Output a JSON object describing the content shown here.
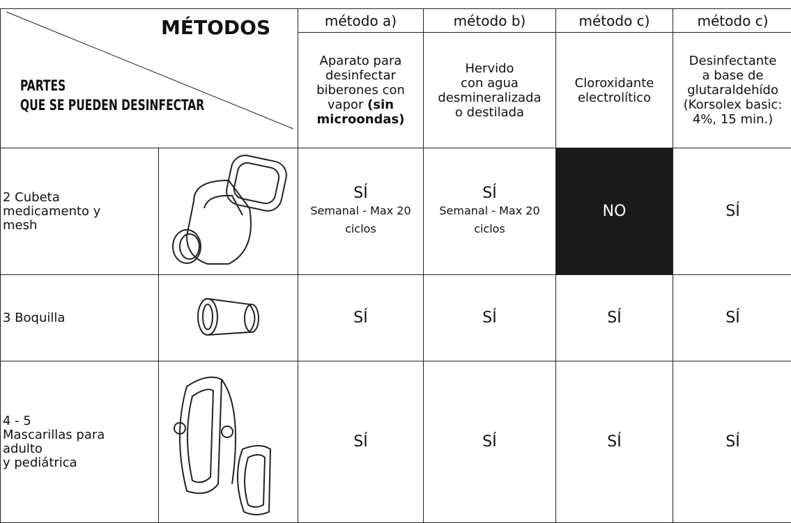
{
  "header": {
    "methods_label": "MÉTODOS",
    "parts_label": [
      "PARTES",
      "QUE SE PUEDEN DESINFECTAR"
    ]
  },
  "columns": [
    {
      "method": "método a)",
      "description": [
        "Aparato para desinfectar biberones con vapor "
      ],
      "description_bold": "(sin microondas)"
    },
    {
      "method": "método b)",
      "description": [
        "Hervido",
        "con agua",
        "desmineralizada",
        "o destilada"
      ]
    },
    {
      "method": "método c)",
      "description": [
        "Cloroxidante",
        "electrolítico"
      ]
    },
    {
      "method": "método c)",
      "description": [
        "Desinfectante",
        "a base de",
        "glutaraldehído",
        "(Korsolex basic:",
        "4%, 15 min.)"
      ]
    }
  ],
  "rows": [
    {
      "part": [
        "2 Cubeta",
        "medicamento y",
        "mesh"
      ],
      "cells": [
        {
          "answer": "SÍ",
          "note": "Semanal - Max 20 ciclos"
        },
        {
          "answer": "SÍ",
          "note": "Semanal - Max 20 ciclos"
        },
        {
          "answer": "NO"
        },
        {
          "answer": "SÍ"
        }
      ]
    },
    {
      "part": [
        "3 Boquilla"
      ],
      "cells": [
        {
          "answer": "SÍ"
        },
        {
          "answer": "SÍ"
        },
        {
          "answer": "SÍ"
        },
        {
          "answer": "SÍ"
        }
      ]
    },
    {
      "part": [
        "4 - 5",
        "Mascarillas para",
        "adulto",
        "y pediátrica"
      ],
      "cells": [
        {
          "answer": "SÍ"
        },
        {
          "answer": "SÍ"
        },
        {
          "answer": "SÍ"
        },
        {
          "answer": "SÍ"
        }
      ]
    }
  ]
}
